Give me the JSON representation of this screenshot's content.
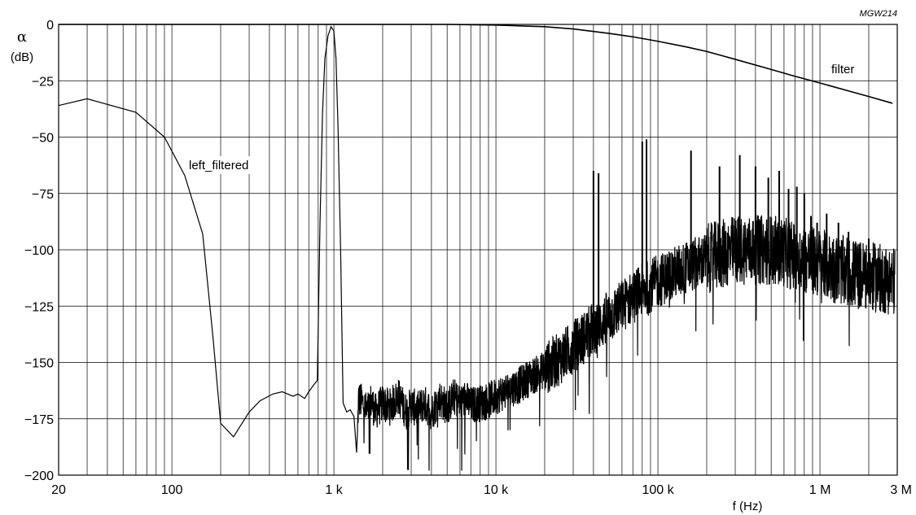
{
  "chart_data": {
    "type": "line",
    "code_label": "MGW214",
    "ylabel_symbol": "α",
    "ylabel_unit": "(dB)",
    "xlabel": "f (Hz)",
    "x_scale": "log",
    "xlim": [
      20,
      3000000
    ],
    "ylim": [
      -200,
      0
    ],
    "grid": true,
    "x_ticks": [
      {
        "value": 20,
        "label": "20"
      },
      {
        "value": 100,
        "label": "100"
      },
      {
        "value": 1000,
        "label": "1 k"
      },
      {
        "value": 10000,
        "label": "10 k"
      },
      {
        "value": 100000,
        "label": "100 k"
      },
      {
        "value": 1000000,
        "label": "1 M"
      },
      {
        "value": 3000000,
        "label": "3 M"
      }
    ],
    "y_ticks": [
      {
        "value": 0,
        "label": "0"
      },
      {
        "value": -25,
        "label": "−25"
      },
      {
        "value": -50,
        "label": "−50"
      },
      {
        "value": -75,
        "label": "−75"
      },
      {
        "value": -100,
        "label": "−100"
      },
      {
        "value": -125,
        "label": "−125"
      },
      {
        "value": -150,
        "label": "−150"
      },
      {
        "value": -175,
        "label": "−175"
      },
      {
        "value": -200,
        "label": "−200"
      }
    ],
    "series": [
      {
        "name": "filter",
        "x": [
          20,
          1000,
          5000,
          10000,
          20000,
          30000,
          50000,
          70000,
          100000,
          150000,
          200000,
          300000,
          500000,
          700000,
          1000000,
          1500000,
          2000000,
          2800000
        ],
        "y": [
          0,
          0,
          0,
          -0.3,
          -1,
          -2,
          -4,
          -5.5,
          -7.5,
          -10,
          -12,
          -15.5,
          -20,
          -23,
          -26,
          -29.5,
          -32,
          -35
        ]
      },
      {
        "name": "left_filtered",
        "x": [
          20,
          30,
          60,
          90,
          120,
          155,
          180,
          200,
          240,
          300,
          350,
          420,
          480,
          560,
          600,
          660,
          700,
          750,
          790,
          820,
          850,
          880,
          920,
          960,
          1000,
          1030,
          1060,
          1100,
          1140,
          1200,
          1260,
          1330,
          1380,
          1400,
          1420,
          1500,
          1600,
          1700,
          1800,
          2000,
          2200,
          2500,
          2800,
          3000,
          3300,
          3600,
          4000,
          4500,
          5000,
          5500,
          6000,
          6500,
          7000,
          8000,
          9000,
          10000,
          12000,
          14000,
          16000,
          18000,
          20000,
          25000,
          30000,
          35000,
          40000,
          50000,
          60000,
          70000,
          80000,
          100000,
          120000,
          150000,
          200000,
          250000,
          300000,
          400000,
          500000,
          600000,
          700000,
          800000,
          1000000,
          1200000,
          1500000,
          2000000,
          2500000,
          2900000
        ],
        "y": [
          -36,
          -33,
          -39,
          -50,
          -67,
          -93,
          -140,
          -177,
          -183,
          -172,
          -167,
          -164,
          -163,
          -165,
          -164,
          -166,
          -163,
          -160,
          -158,
          -90,
          -40,
          -15,
          -5,
          -1,
          -3,
          -15,
          -45,
          -100,
          -168,
          -172,
          -171,
          -174,
          -190,
          -180,
          -166,
          -168,
          -172,
          -167,
          -172,
          -168,
          -170,
          -165,
          -172,
          -169,
          -171,
          -168,
          -172,
          -166,
          -170,
          -165,
          -168,
          -166,
          -169,
          -168,
          -167,
          -165,
          -162,
          -160,
          -157,
          -155,
          -153,
          -148,
          -143,
          -139,
          -135,
          -130,
          -125,
          -121,
          -118,
          -114,
          -111,
          -108,
          -104,
          -102,
          -100,
          -100,
          -100,
          -101,
          -103,
          -104,
          -106,
          -108,
          -110,
          -112,
          -113,
          -114
        ],
        "noise_band_db": 12,
        "spurs": [
          {
            "x": 40000,
            "y": -65
          },
          {
            "x": 43000,
            "y": -66
          },
          {
            "x": 80000,
            "y": -52
          },
          {
            "x": 85000,
            "y": -51
          },
          {
            "x": 160000,
            "y": -56
          },
          {
            "x": 240000,
            "y": -63
          },
          {
            "x": 320000,
            "y": -58
          },
          {
            "x": 400000,
            "y": -63
          },
          {
            "x": 480000,
            "y": -68
          },
          {
            "x": 560000,
            "y": -65
          },
          {
            "x": 640000,
            "y": -73
          },
          {
            "x": 720000,
            "y": -72
          },
          {
            "x": 800000,
            "y": -75
          },
          {
            "x": 880000,
            "y": -85
          },
          {
            "x": 960000,
            "y": -88
          },
          {
            "x": 1100000,
            "y": -84
          },
          {
            "x": 1300000,
            "y": -88
          },
          {
            "x": 1500000,
            "y": -92
          },
          {
            "x": 2000000,
            "y": -95
          }
        ]
      }
    ]
  }
}
